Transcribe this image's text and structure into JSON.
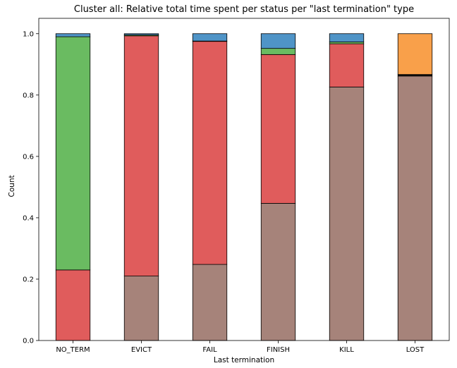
{
  "chart_data": {
    "type": "bar",
    "stacked": true,
    "title": "Cluster all: Relative total time spent per status per \"last termination\" type",
    "xlabel": "Last termination",
    "ylabel": "Count",
    "ylim": [
      0,
      1.05
    ],
    "yticks": [
      "0.0",
      "0.2",
      "0.4",
      "0.6",
      "0.8",
      "1.0"
    ],
    "grid": false,
    "legend": "none",
    "categories": [
      "NO_TERM",
      "EVICT",
      "FAIL",
      "FINISH",
      "KILL",
      "LOST"
    ],
    "series": [
      {
        "color": "#a6837a",
        "values": [
          0.0,
          0.21,
          0.248,
          0.447,
          0.826,
          0.862
        ]
      },
      {
        "color": "#e05c5c",
        "values": [
          0.23,
          0.783,
          0.727,
          0.485,
          0.141,
          0.0
        ]
      },
      {
        "color": "#111111",
        "values": [
          0.0,
          0.0,
          0.0,
          0.0,
          0.0,
          0.005
        ]
      },
      {
        "color": "#6abb61",
        "values": [
          0.76,
          0.003,
          0.001,
          0.02,
          0.006,
          0.0
        ]
      },
      {
        "color": "#4f94c7",
        "values": [
          0.01,
          0.004,
          0.024,
          0.048,
          0.027,
          0.0
        ]
      },
      {
        "color": "#f9a04a",
        "values": [
          0.0,
          0.0,
          0.0,
          0.0,
          0.0,
          0.133
        ]
      }
    ]
  }
}
